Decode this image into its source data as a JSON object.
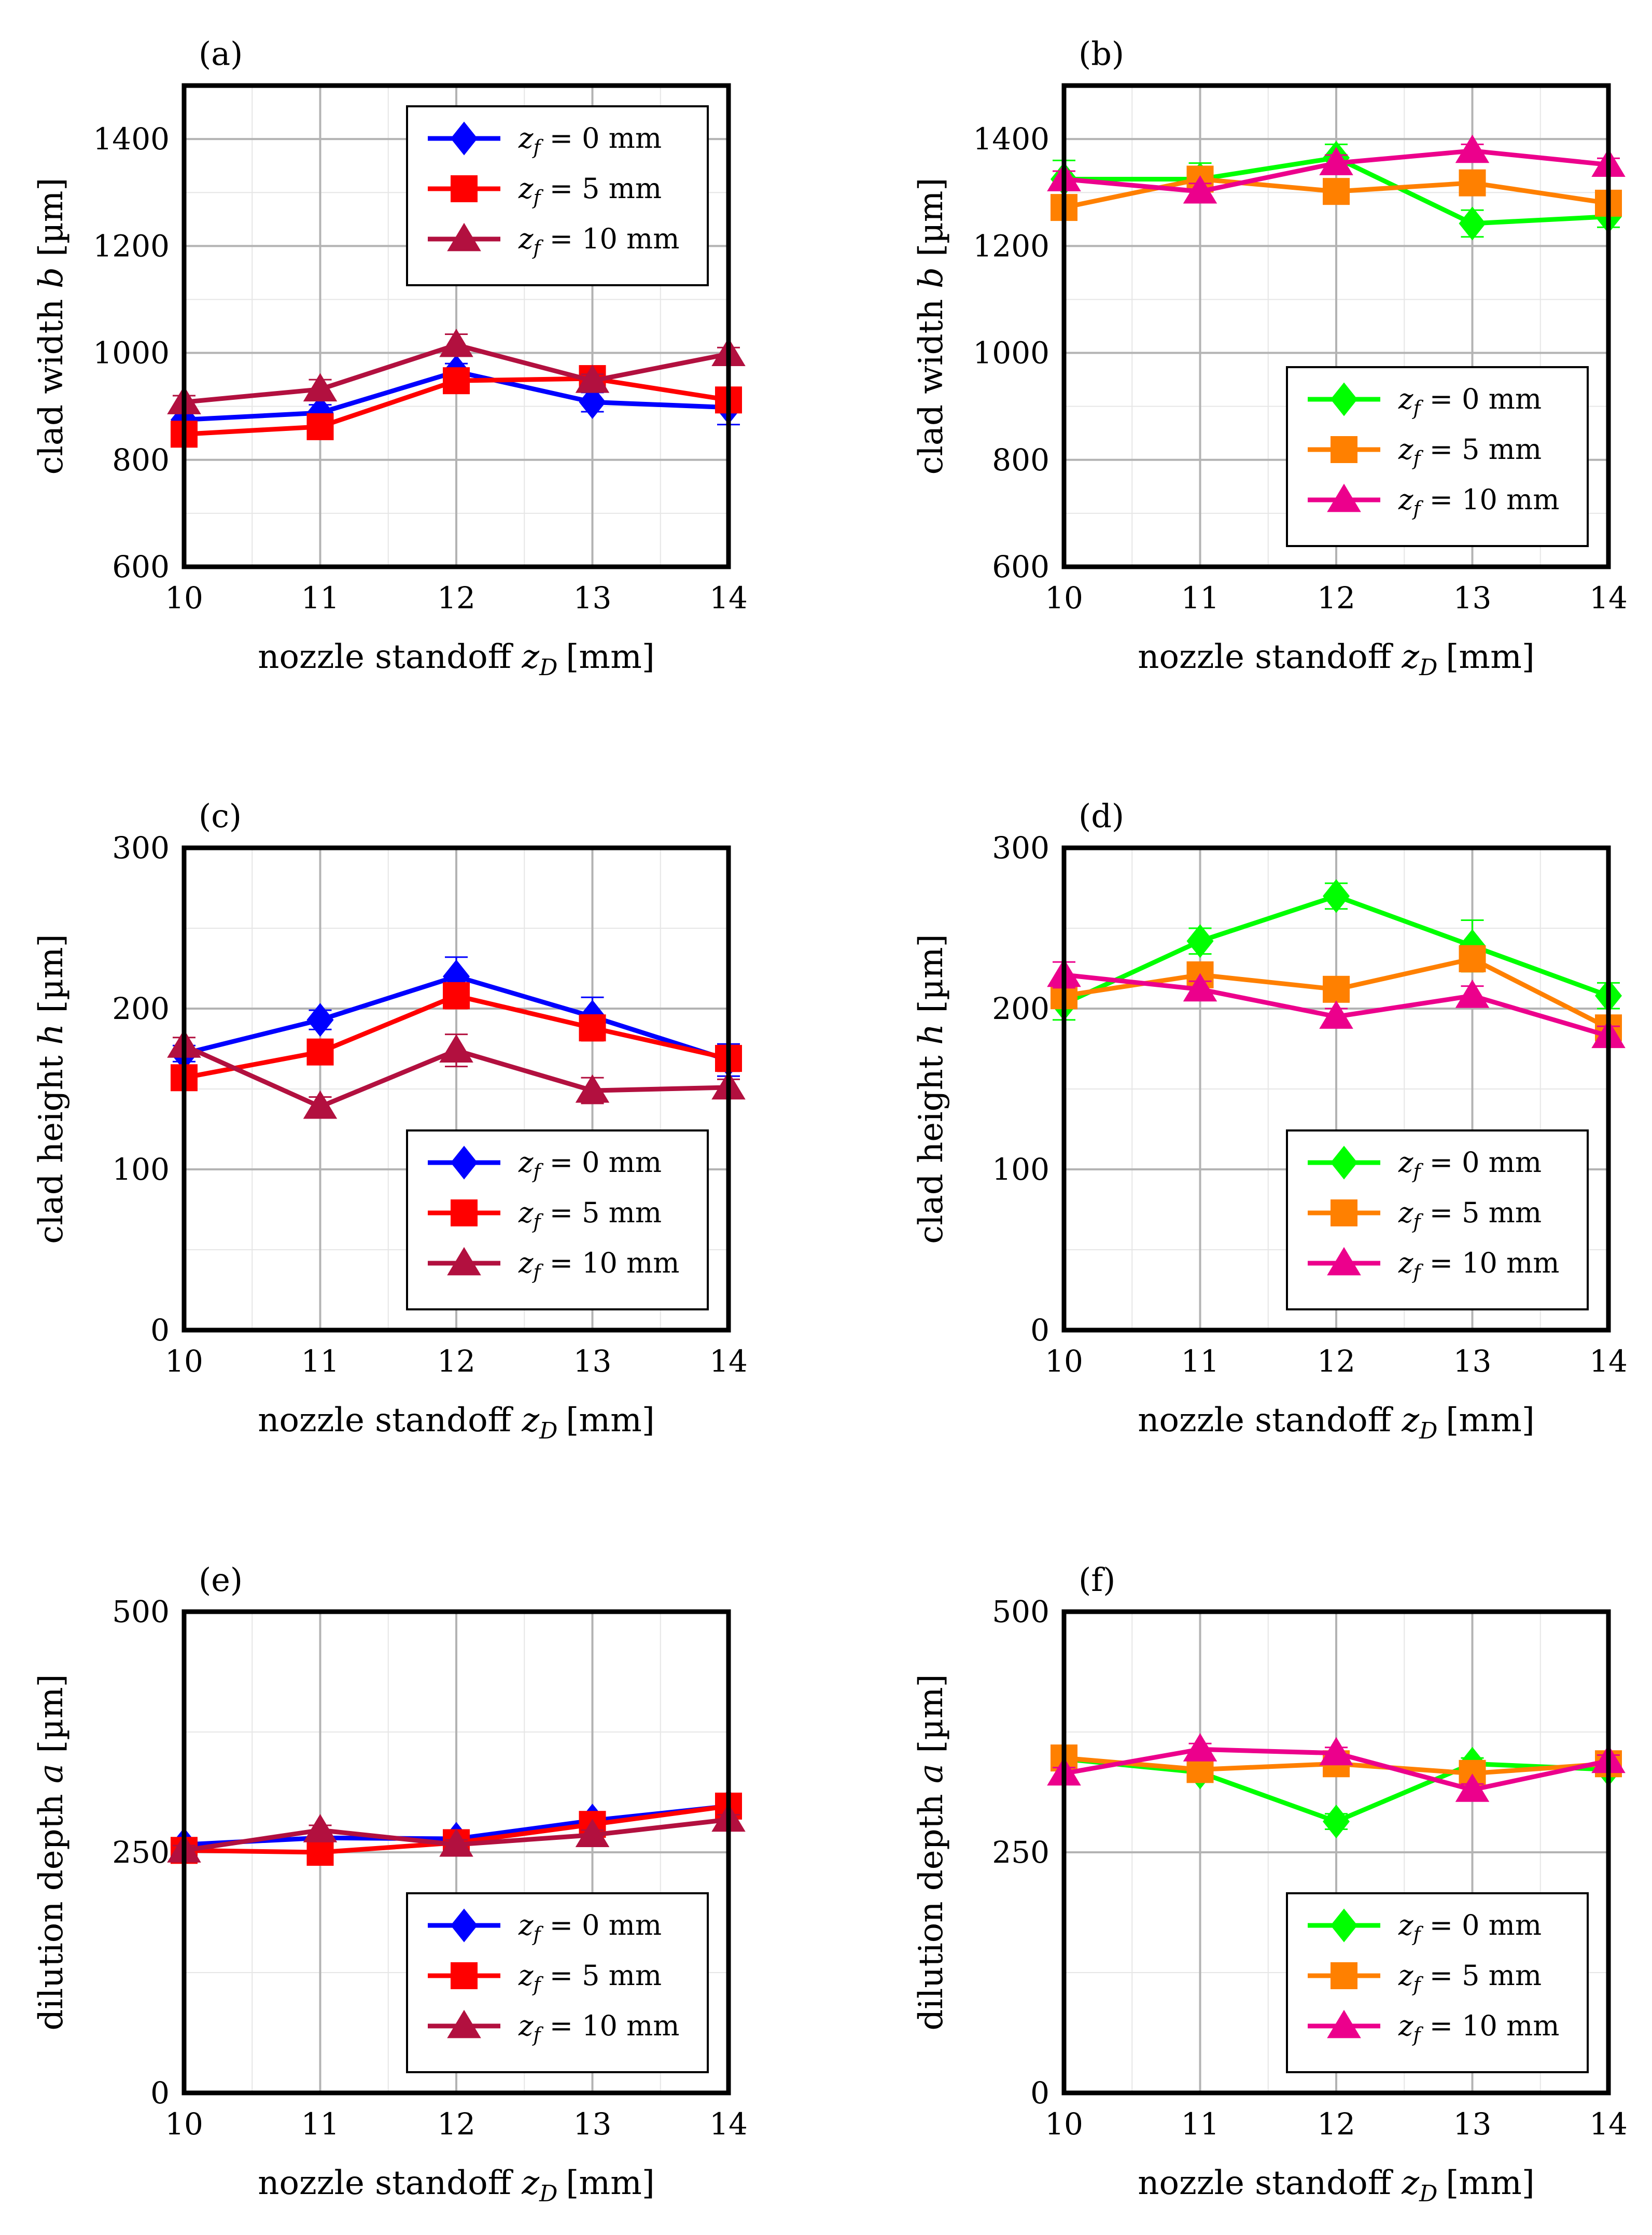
{
  "chart_data": [
    {
      "type": "line",
      "panel_label": "(a)",
      "x": [
        10,
        11,
        12,
        13,
        14
      ],
      "xlabel": "nozzle standoff",
      "xlabel_var": "z",
      "xlabel_sub": "D",
      "xlabel_unit": "[mm]",
      "ylabel": "clad width",
      "ylabel_var": "b",
      "ylabel_unit": "[µm]",
      "ylim": [
        600,
        1500
      ],
      "yticks": [
        600,
        800,
        1000,
        1200,
        1400
      ],
      "xticks": [
        10,
        11,
        12,
        13,
        14
      ],
      "grid": true,
      "legend_position": "top-right",
      "series": [
        {
          "name": "z_f = 0 mm",
          "legend_var": "z",
          "legend_sub": "f",
          "legend_eq": " = ",
          "legend_val": "0",
          "legend_unit": " mm",
          "color": "#0000ff",
          "marker": "diamond",
          "values": [
            875,
            888,
            965,
            908,
            898
          ],
          "errors": [
            15,
            15,
            15,
            18,
            32
          ]
        },
        {
          "name": "z_f = 5 mm",
          "legend_var": "z",
          "legend_sub": "f",
          "legend_eq": " = ",
          "legend_val": "5",
          "legend_unit": " mm",
          "color": "#ff0000",
          "marker": "square",
          "values": [
            848,
            862,
            948,
            952,
            912
          ],
          "errors": [
            12,
            12,
            15,
            15,
            15
          ]
        },
        {
          "name": "z_f = 10 mm",
          "legend_var": "z",
          "legend_sub": "f",
          "legend_eq": " = ",
          "legend_val": "10",
          "legend_unit": " mm",
          "color": "#b2103f",
          "marker": "triangle",
          "values": [
            908,
            932,
            1015,
            948,
            998
          ],
          "errors": [
            12,
            18,
            20,
            12,
            12
          ]
        }
      ]
    },
    {
      "type": "line",
      "panel_label": "(b)",
      "x": [
        10,
        11,
        12,
        13,
        14
      ],
      "xlabel": "nozzle standoff",
      "xlabel_var": "z",
      "xlabel_sub": "D",
      "xlabel_unit": "[mm]",
      "ylabel": "clad width",
      "ylabel_var": "b",
      "ylabel_unit": "[µm]",
      "ylim": [
        600,
        1500
      ],
      "yticks": [
        600,
        800,
        1000,
        1200,
        1400
      ],
      "xticks": [
        10,
        11,
        12,
        13,
        14
      ],
      "grid": true,
      "legend_position": "bottom-right",
      "series": [
        {
          "name": "z_f = 0 mm",
          "legend_var": "z",
          "legend_sub": "f",
          "legend_eq": " = ",
          "legend_val": "0",
          "legend_unit": " mm",
          "color": "#00ff00",
          "marker": "diamond",
          "values": [
            1325,
            1325,
            1365,
            1242,
            1255
          ],
          "errors": [
            35,
            30,
            25,
            25,
            20
          ]
        },
        {
          "name": "z_f = 5 mm",
          "legend_var": "z",
          "legend_sub": "f",
          "legend_eq": " = ",
          "legend_val": "5",
          "legend_unit": " mm",
          "color": "#ff8000",
          "marker": "square",
          "values": [
            1272,
            1325,
            1302,
            1318,
            1280
          ],
          "errors": [
            20,
            20,
            15,
            15,
            15
          ]
        },
        {
          "name": "z_f = 10 mm",
          "legend_var": "z",
          "legend_sub": "f",
          "legend_eq": " = ",
          "legend_val": "10",
          "legend_unit": " mm",
          "color": "#ec008c",
          "marker": "triangle",
          "values": [
            1325,
            1302,
            1355,
            1378,
            1352
          ],
          "errors": [
            15,
            15,
            15,
            12,
            12
          ]
        }
      ]
    },
    {
      "type": "line",
      "panel_label": "(c)",
      "x": [
        10,
        11,
        12,
        13,
        14
      ],
      "xlabel": "nozzle standoff",
      "xlabel_var": "z",
      "xlabel_sub": "D",
      "xlabel_unit": "[mm]",
      "ylabel": "clad height",
      "ylabel_var": "h",
      "ylabel_unit": "[µm]",
      "ylim": [
        0,
        300
      ],
      "yticks": [
        0,
        100,
        200,
        300
      ],
      "xticks": [
        10,
        11,
        12,
        13,
        14
      ],
      "grid": true,
      "legend_position": "bottom-right",
      "series": [
        {
          "name": "z_f = 0 mm",
          "legend_var": "z",
          "legend_sub": "f",
          "legend_eq": " = ",
          "legend_val": "0",
          "legend_unit": " mm",
          "color": "#0000ff",
          "marker": "diamond",
          "values": [
            172,
            193,
            220,
            195,
            168
          ],
          "errors": [
            5,
            6,
            12,
            12,
            10
          ]
        },
        {
          "name": "z_f = 5 mm",
          "legend_var": "z",
          "legend_sub": "f",
          "legend_eq": " = ",
          "legend_val": "5",
          "legend_unit": " mm",
          "color": "#ff0000",
          "marker": "square",
          "values": [
            157,
            173,
            208,
            188,
            169
          ],
          "errors": [
            5,
            6,
            8,
            8,
            8
          ]
        },
        {
          "name": "z_f = 10 mm",
          "legend_var": "z",
          "legend_sub": "f",
          "legend_eq": " = ",
          "legend_val": "10",
          "legend_unit": " mm",
          "color": "#b2103f",
          "marker": "triangle",
          "values": [
            177,
            139,
            174,
            149,
            151
          ],
          "errors": [
            5,
            6,
            10,
            8,
            5
          ]
        }
      ]
    },
    {
      "type": "line",
      "panel_label": "(d)",
      "x": [
        10,
        11,
        12,
        13,
        14
      ],
      "xlabel": "nozzle standoff",
      "xlabel_var": "z",
      "xlabel_sub": "D",
      "xlabel_unit": "[mm]",
      "ylabel": "clad height",
      "ylabel_var": "h",
      "ylabel_unit": "[µm]",
      "ylim": [
        0,
        300
      ],
      "yticks": [
        0,
        100,
        200,
        300
      ],
      "xticks": [
        10,
        11,
        12,
        13,
        14
      ],
      "grid": true,
      "legend_position": "bottom-right",
      "series": [
        {
          "name": "z_f = 0 mm",
          "legend_var": "z",
          "legend_sub": "f",
          "legend_eq": " = ",
          "legend_val": "0",
          "legend_unit": " mm",
          "color": "#00ff00",
          "marker": "diamond",
          "values": [
            203,
            242,
            270,
            239,
            208
          ],
          "errors": [
            10,
            8,
            8,
            16,
            8
          ]
        },
        {
          "name": "z_f = 5 mm",
          "legend_var": "z",
          "legend_sub": "f",
          "legend_eq": " = ",
          "legend_val": "5",
          "legend_unit": " mm",
          "color": "#ff8000",
          "marker": "square",
          "values": [
            208,
            221,
            212,
            231,
            188
          ],
          "errors": [
            6,
            6,
            6,
            8,
            6
          ]
        },
        {
          "name": "z_f = 10 mm",
          "legend_var": "z",
          "legend_sub": "f",
          "legend_eq": " = ",
          "legend_val": "10",
          "legend_unit": " mm",
          "color": "#ec008c",
          "marker": "triangle",
          "values": [
            221,
            212,
            195,
            208,
            183
          ],
          "errors": [
            8,
            5,
            5,
            6,
            6
          ]
        }
      ]
    },
    {
      "type": "line",
      "panel_label": "(e)",
      "x": [
        10,
        11,
        12,
        13,
        14
      ],
      "xlabel": "nozzle standoff",
      "xlabel_var": "z",
      "xlabel_sub": "D",
      "xlabel_unit": "[mm]",
      "ylabel": "dilution depth",
      "ylabel_var": "a",
      "ylabel_unit": "[µm]",
      "ylim": [
        0,
        500
      ],
      "yticks": [
        0,
        250,
        500
      ],
      "xticks": [
        10,
        11,
        12,
        13,
        14
      ],
      "grid": true,
      "legend_position": "bottom-right",
      "series": [
        {
          "name": "z_f = 0 mm",
          "legend_var": "z",
          "legend_sub": "f",
          "legend_eq": " = ",
          "legend_val": "0",
          "legend_unit": " mm",
          "color": "#0000ff",
          "marker": "diamond",
          "values": [
            258,
            265,
            264,
            283,
            298
          ],
          "errors": [
            5,
            5,
            5,
            5,
            5
          ]
        },
        {
          "name": "z_f = 5 mm",
          "legend_var": "z",
          "legend_sub": "f",
          "legend_eq": " = ",
          "legend_val": "5",
          "legend_unit": " mm",
          "color": "#ff0000",
          "marker": "square",
          "values": [
            252,
            250,
            260,
            279,
            298
          ],
          "errors": [
            5,
            5,
            5,
            5,
            5
          ]
        },
        {
          "name": "z_f = 10 mm",
          "legend_var": "z",
          "legend_sub": "f",
          "legend_eq": " = ",
          "legend_val": "10",
          "legend_unit": " mm",
          "color": "#b2103f",
          "marker": "triangle",
          "values": [
            252,
            273,
            258,
            268,
            284
          ],
          "errors": [
            5,
            5,
            5,
            5,
            5
          ]
        }
      ]
    },
    {
      "type": "line",
      "panel_label": "(f)",
      "x": [
        10,
        11,
        12,
        13,
        14
      ],
      "xlabel": "nozzle standoff",
      "xlabel_var": "z",
      "xlabel_sub": "D",
      "xlabel_unit": "[mm]",
      "ylabel": "dilution depth",
      "ylabel_var": "a",
      "ylabel_unit": "[µm]",
      "ylim": [
        0,
        500
      ],
      "yticks": [
        0,
        250,
        500
      ],
      "xticks": [
        10,
        11,
        12,
        13,
        14
      ],
      "grid": true,
      "legend_position": "bottom-right",
      "series": [
        {
          "name": "z_f = 0 mm",
          "legend_var": "z",
          "legend_sub": "f",
          "legend_eq": " = ",
          "legend_val": "0",
          "legend_unit": " mm",
          "color": "#00ff00",
          "marker": "diamond",
          "values": [
            347,
            333,
            282,
            342,
            336
          ],
          "errors": [
            6,
            6,
            8,
            6,
            6
          ]
        },
        {
          "name": "z_f = 5 mm",
          "legend_var": "z",
          "legend_sub": "f",
          "legend_eq": " = ",
          "legend_val": "5",
          "legend_unit": " mm",
          "color": "#ff8000",
          "marker": "square",
          "values": [
            348,
            336,
            342,
            332,
            342
          ],
          "errors": [
            6,
            6,
            6,
            6,
            6
          ]
        },
        {
          "name": "z_f = 10 mm",
          "legend_var": "z",
          "legend_sub": "f",
          "legend_eq": " = ",
          "legend_val": "10",
          "legend_unit": " mm",
          "color": "#ec008c",
          "marker": "triangle",
          "values": [
            332,
            357,
            353,
            315,
            345
          ],
          "errors": [
            6,
            6,
            6,
            6,
            6
          ]
        }
      ]
    }
  ]
}
